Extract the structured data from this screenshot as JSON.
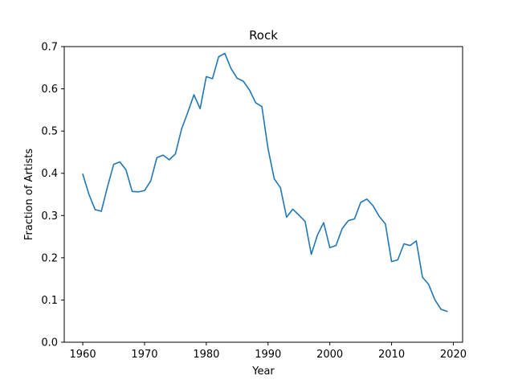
{
  "chart_data": {
    "type": "line",
    "title": "Rock",
    "xlabel": "Year",
    "ylabel": "Fraction of Artists",
    "xlim": [
      1957,
      2021.5
    ],
    "ylim": [
      0,
      0.7
    ],
    "xticks": [
      1960,
      1970,
      1980,
      1990,
      2000,
      2010,
      2020
    ],
    "yticks": [
      0.0,
      0.1,
      0.2,
      0.3,
      0.4,
      0.5,
      0.6,
      0.7
    ],
    "xtick_labels": [
      "1960",
      "1970",
      "1980",
      "1990",
      "2000",
      "2010",
      "2020"
    ],
    "ytick_labels": [
      "0.0",
      "0.1",
      "0.2",
      "0.3",
      "0.4",
      "0.5",
      "0.6",
      "0.7"
    ],
    "grid": false,
    "color": "#1f77b4",
    "series": [
      {
        "x": [
          1960,
          1961,
          1962,
          1963,
          1964,
          1965,
          1966,
          1967,
          1968,
          1969,
          1970,
          1971,
          1972,
          1973,
          1974,
          1975,
          1976,
          1977,
          1978,
          1979,
          1980,
          1981,
          1982,
          1983,
          1984,
          1985,
          1986,
          1987,
          1988,
          1989,
          1990,
          1991,
          1992,
          1993,
          1994,
          1995,
          1996,
          1997,
          1998,
          1999,
          2000,
          2001,
          2002,
          2003,
          2004,
          2005,
          2006,
          2007,
          2008,
          2009,
          2010,
          2011,
          2012,
          2013,
          2014,
          2015,
          2016,
          2017,
          2018,
          2019
        ],
        "values": [
          0.398,
          0.35,
          0.314,
          0.31,
          0.368,
          0.421,
          0.427,
          0.408,
          0.357,
          0.356,
          0.359,
          0.382,
          0.437,
          0.443,
          0.432,
          0.446,
          0.505,
          0.544,
          0.586,
          0.553,
          0.629,
          0.624,
          0.676,
          0.684,
          0.648,
          0.625,
          0.618,
          0.597,
          0.567,
          0.558,
          0.458,
          0.387,
          0.366,
          0.296,
          0.315,
          0.301,
          0.286,
          0.208,
          0.254,
          0.283,
          0.224,
          0.229,
          0.269,
          0.288,
          0.292,
          0.331,
          0.339,
          0.323,
          0.298,
          0.28,
          0.191,
          0.195,
          0.233,
          0.229,
          0.24,
          0.154,
          0.137,
          0.101,
          0.078,
          0.073
        ]
      }
    ]
  }
}
